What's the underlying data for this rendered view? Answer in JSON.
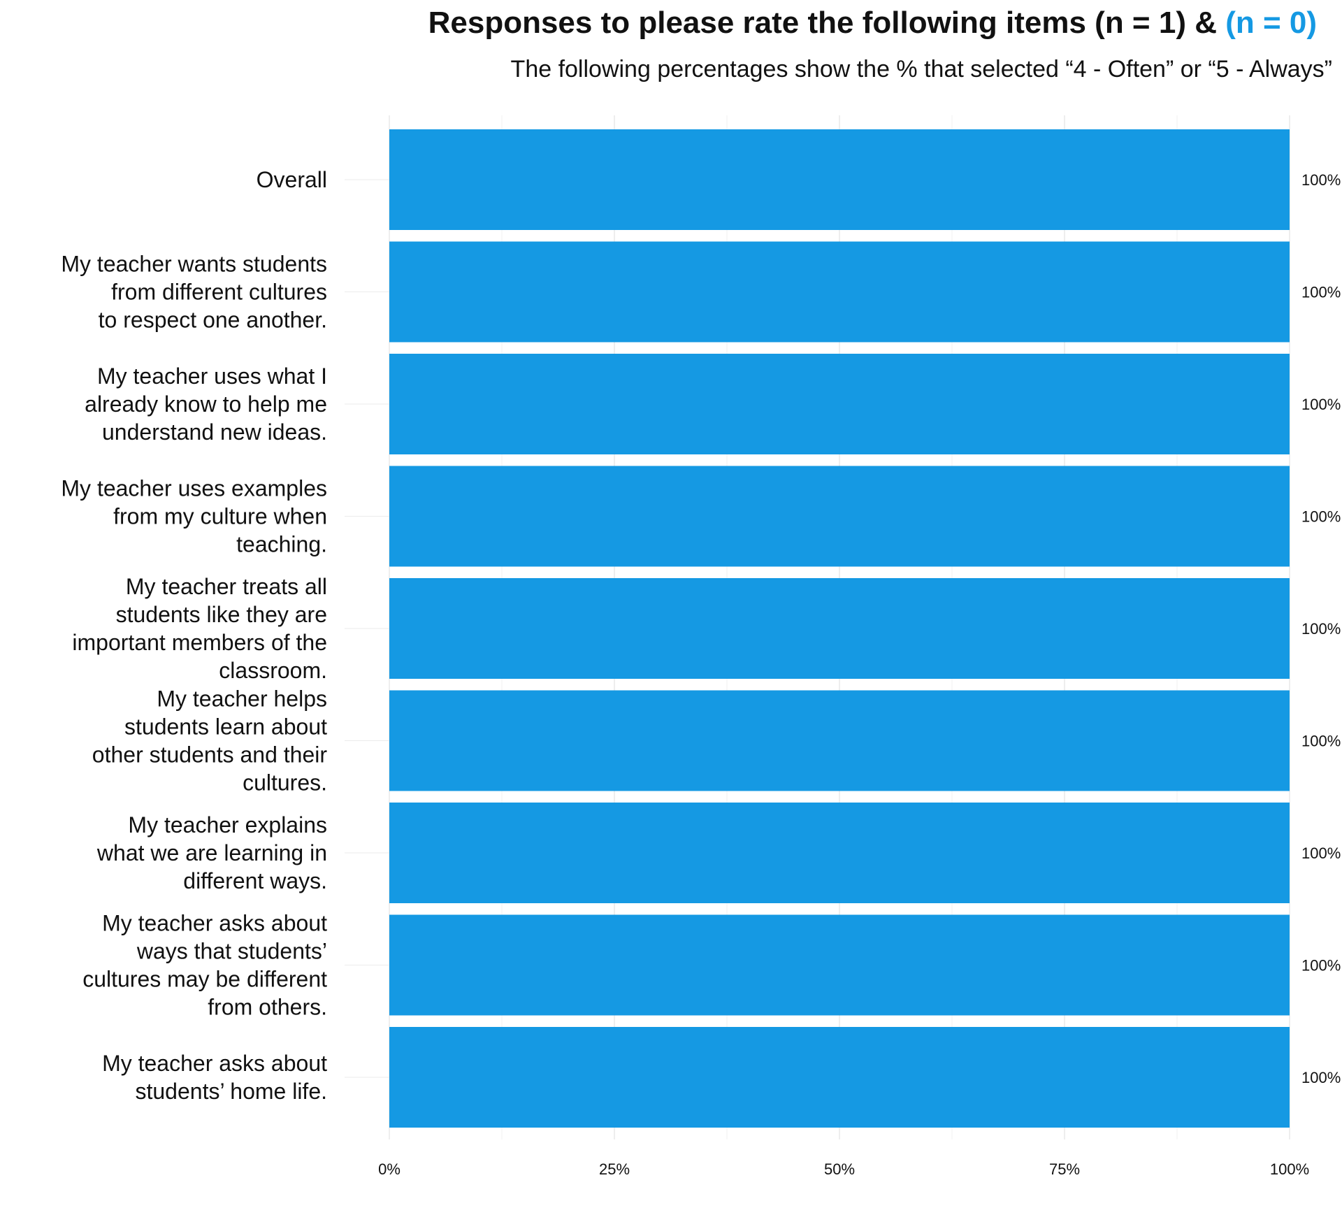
{
  "chart_data": {
    "type": "bar",
    "orientation": "horizontal",
    "title_main": "Responses to please rate the following items (n = 1) & ",
    "title_accent": "(n = 0)",
    "subtitle": "The following percentages show the % that selected “4 - Often” or “5 - Always”",
    "categories": [
      [
        "Overall"
      ],
      [
        "My teacher wants students",
        "from different cultures",
        "to respect one another."
      ],
      [
        "My teacher uses what I",
        "already know to help me",
        "understand new ideas."
      ],
      [
        "My teacher uses examples",
        "from my culture when",
        "teaching."
      ],
      [
        "My teacher treats all",
        "students like they are",
        "important members of the",
        "classroom."
      ],
      [
        "My teacher helps",
        "students learn about",
        "other students and their",
        "cultures."
      ],
      [
        "My teacher explains",
        "what we are learning in",
        "different ways."
      ],
      [
        "My teacher asks about",
        "ways that students’",
        "cultures may be different",
        "from others."
      ],
      [
        "My teacher asks about",
        "students’ home life."
      ]
    ],
    "values": [
      100,
      100,
      100,
      100,
      100,
      100,
      100,
      100,
      100
    ],
    "value_labels": [
      "100%",
      "100%",
      "100%",
      "100%",
      "100%",
      "100%",
      "100%",
      "100%",
      "100%"
    ],
    "xlim": [
      0,
      100
    ],
    "xticks": [
      0,
      25,
      50,
      75,
      100
    ],
    "xtick_labels": [
      "0%",
      "25%",
      "50%",
      "75%",
      "100%"
    ],
    "bar_color": "#1599e3",
    "accent_color": "#1599e3",
    "grid": true,
    "legend": "none"
  }
}
